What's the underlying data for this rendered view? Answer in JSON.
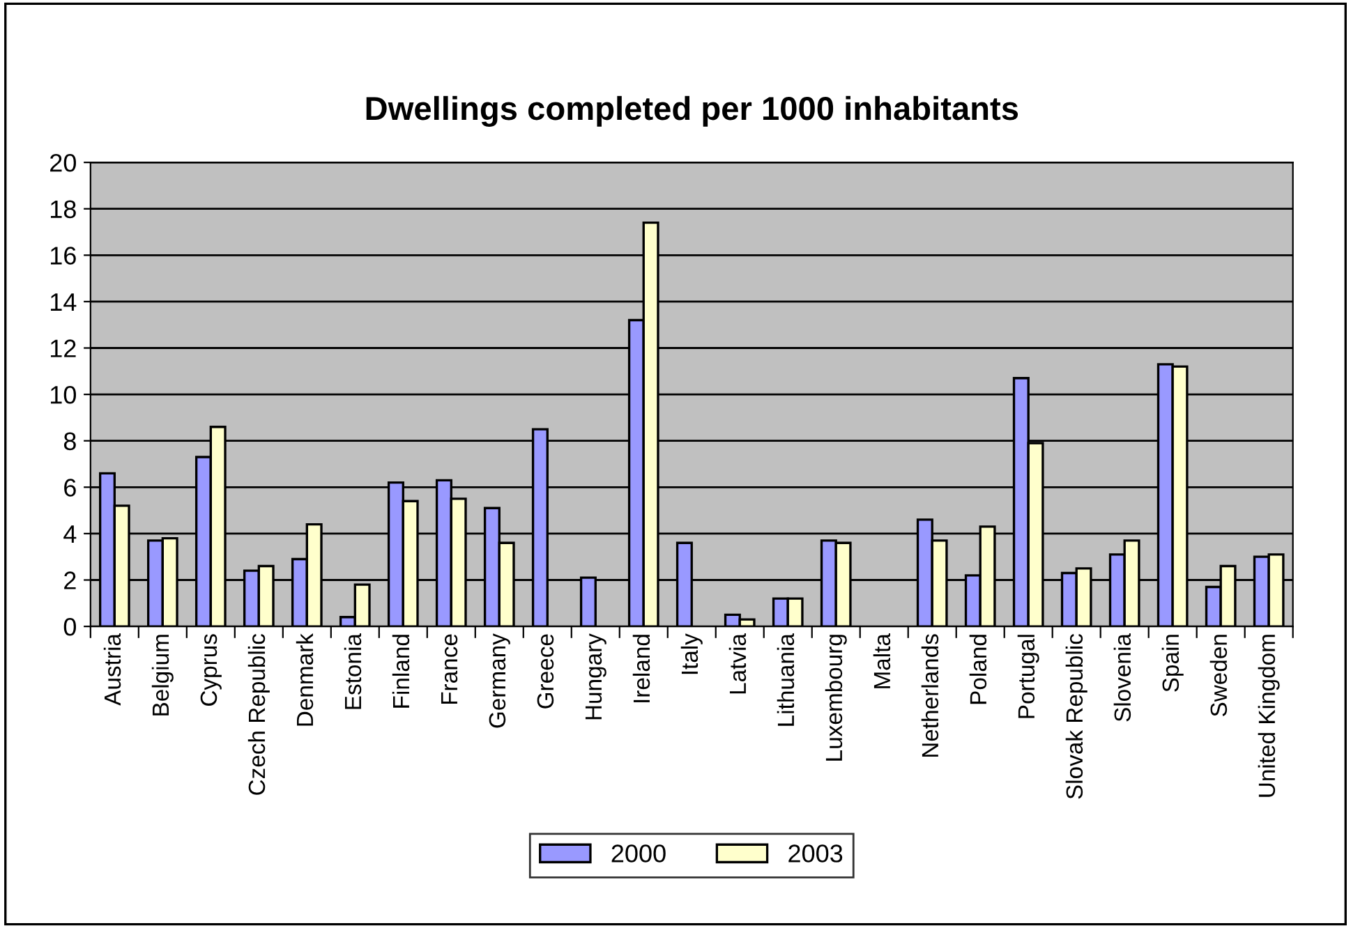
{
  "chart_data": {
    "type": "bar",
    "title": "Dwellings completed per 1000 inhabitants",
    "categories": [
      "Austria",
      "Belgium",
      "Cyprus",
      "Czech Republic",
      "Denmark",
      "Estonia",
      "Finland",
      "France",
      "Germany",
      "Greece",
      "Hungary",
      "Ireland",
      "Italy",
      "Latvia",
      "Lithuania",
      "Luxembourg",
      "Malta",
      "Netherlands",
      "Poland",
      "Portugal",
      "Slovak Republic",
      "Slovenia",
      "Spain",
      "Sweden",
      "United Kingdom"
    ],
    "series": [
      {
        "name": "2000",
        "color": "#9999ff",
        "values": [
          6.6,
          3.7,
          7.3,
          2.4,
          2.9,
          0.4,
          6.2,
          6.3,
          5.1,
          8.5,
          2.1,
          13.2,
          3.6,
          0.5,
          1.2,
          3.7,
          null,
          4.6,
          2.2,
          10.7,
          2.3,
          3.1,
          11.3,
          1.7,
          3.0
        ]
      },
      {
        "name": "2003",
        "color": "#ffffcc",
        "values": [
          5.2,
          3.8,
          8.6,
          2.6,
          4.4,
          1.8,
          5.4,
          5.5,
          3.6,
          null,
          null,
          17.4,
          null,
          0.3,
          1.2,
          3.6,
          null,
          3.7,
          4.3,
          7.9,
          2.5,
          3.7,
          11.2,
          2.6,
          3.1
        ]
      }
    ],
    "ylim": [
      0,
      20
    ],
    "yticks": [
      0,
      2,
      4,
      6,
      8,
      10,
      12,
      14,
      16,
      18,
      20
    ],
    "grid": "y",
    "legend": "bottom"
  }
}
